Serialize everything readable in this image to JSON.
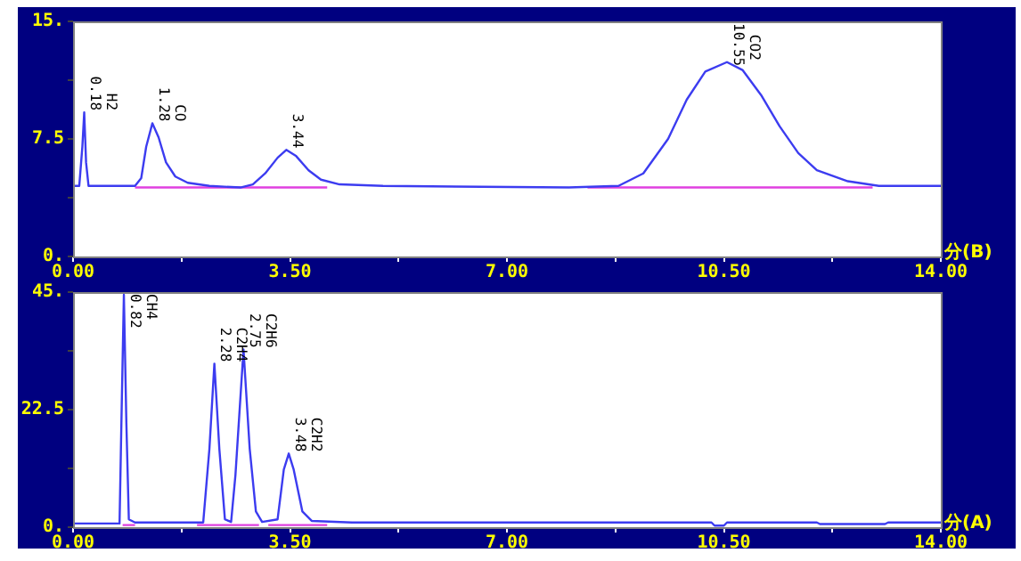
{
  "chart_data": [
    {
      "type": "line",
      "xlabel": "分(B)",
      "xlim": [
        0,
        14
      ],
      "ylim": [
        0,
        15
      ],
      "xticks": [
        {
          "value": 0,
          "label": "0.00"
        },
        {
          "value": 1.75,
          "label": null
        },
        {
          "value": 3.5,
          "label": "3.50"
        },
        {
          "value": 5.25,
          "label": null
        },
        {
          "value": 7,
          "label": "7.00"
        },
        {
          "value": 8.75,
          "label": null
        },
        {
          "value": 10.5,
          "label": "10.50"
        },
        {
          "value": 12.25,
          "label": null
        },
        {
          "value": 14,
          "label": "14.00"
        }
      ],
      "yticks": [
        {
          "value": 0,
          "label": "0."
        },
        {
          "value": 3.75,
          "label": null
        },
        {
          "value": 7.5,
          "label": "7.5"
        },
        {
          "value": 11.25,
          "label": null
        },
        {
          "value": 15,
          "label": "15."
        }
      ],
      "grid": false,
      "legend": false,
      "marker": "none",
      "line_style": "solid",
      "series": [
        {
          "color": "#3c3cf0",
          "x": [
            0,
            0.1,
            0.15,
            0.18,
            0.21,
            0.25,
            1.0,
            1.1,
            1.18,
            1.28,
            1.38,
            1.5,
            1.65,
            1.85,
            2.2,
            2.7,
            2.9,
            3.1,
            3.3,
            3.44,
            3.6,
            3.8,
            4.0,
            4.3,
            5,
            8,
            8.8,
            9.2,
            9.6,
            9.9,
            10.2,
            10.55,
            10.8,
            11.1,
            11.4,
            11.7,
            12.0,
            12.5,
            13,
            14
          ],
          "values": [
            4.5,
            4.5,
            7,
            9.2,
            6,
            4.5,
            4.5,
            5.0,
            7.0,
            8.5,
            7.6,
            6.0,
            5.1,
            4.7,
            4.5,
            4.4,
            4.6,
            5.3,
            6.3,
            6.8,
            6.4,
            5.5,
            4.9,
            4.6,
            4.5,
            4.4,
            4.5,
            5.3,
            7.5,
            10.0,
            11.8,
            12.4,
            11.9,
            10.3,
            8.3,
            6.6,
            5.5,
            4.8,
            4.5,
            4.5
          ]
        },
        {
          "color": "#e040e0",
          "x": [
            1.0,
            2.7,
            2.75,
            4.1,
            4.2,
            8.3,
            12.9
          ],
          "values": [
            4.4,
            4.4,
            4.4,
            4.4,
            null,
            4.4,
            4.4
          ]
        }
      ],
      "annotations": [
        {
          "text": "0.18",
          "x": 0.18,
          "y": 9.2
        },
        {
          "text": "H2",
          "x": 0.18,
          "y": 9.2
        },
        {
          "text": "1.28",
          "x": 1.28,
          "y": 8.5
        },
        {
          "text": "CO",
          "x": 1.28,
          "y": 8.5
        },
        {
          "text": "3.44",
          "x": 3.44,
          "y": 6.8
        },
        {
          "text": "10.55",
          "x": 10.55,
          "y": 12.4
        },
        {
          "text": "CO2",
          "x": 10.55,
          "y": 12.4
        }
      ]
    },
    {
      "type": "line",
      "xlabel": "分(A)",
      "xlim": [
        0,
        14
      ],
      "ylim": [
        0,
        45
      ],
      "xticks": [
        {
          "value": 0,
          "label": "0.00"
        },
        {
          "value": 1.75,
          "label": null
        },
        {
          "value": 3.5,
          "label": "3.50"
        },
        {
          "value": 5.25,
          "label": null
        },
        {
          "value": 7,
          "label": "7.00"
        },
        {
          "value": 8.75,
          "label": null
        },
        {
          "value": 10.5,
          "label": "10.50"
        },
        {
          "value": 12.25,
          "label": null
        },
        {
          "value": 14,
          "label": "14.00"
        }
      ],
      "yticks": [
        {
          "value": 0,
          "label": "0."
        },
        {
          "value": 11.25,
          "label": null
        },
        {
          "value": 22.5,
          "label": "22.5"
        },
        {
          "value": 33.75,
          "label": null
        },
        {
          "value": 45,
          "label": "45."
        }
      ],
      "grid": false,
      "legend": false,
      "marker": "none",
      "line_style": "solid",
      "series": [
        {
          "color": "#3c3cf0",
          "x": [
            0,
            0.75,
            0.78,
            0.82,
            0.86,
            0.9,
            1.0,
            2.1,
            2.2,
            2.28,
            2.36,
            2.45,
            2.55,
            2.62,
            2.75,
            2.85,
            2.95,
            3.05,
            3.3,
            3.4,
            3.48,
            3.56,
            3.7,
            3.85,
            4.5,
            10.3,
            10.35,
            10.5,
            10.55,
            12,
            12.05,
            13.1,
            13.15,
            14
          ],
          "values": [
            0.7,
            0.7,
            20,
            44.5,
            20,
            1.5,
            0.9,
            0.9,
            15,
            31.3,
            15,
            1.5,
            1.0,
            10,
            34,
            15,
            3,
            1.0,
            1.5,
            11,
            14.1,
            11,
            3,
            1.2,
            0.9,
            0.9,
            0.3,
            0.3,
            0.9,
            0.9,
            0.6,
            0.6,
            0.9,
            0.9
          ]
        },
        {
          "color": "#e040e0",
          "x": [
            0.8,
            1.0,
            1.1,
            2.0,
            3.0,
            3.1,
            3.15,
            4.1
          ],
          "values": [
            0.4,
            0.4,
            null,
            0.4,
            0.4,
            null,
            0.4,
            0.4
          ]
        }
      ],
      "annotations": [
        {
          "text": "0.82",
          "x": 0.82,
          "y": 44.5
        },
        {
          "text": "CH4",
          "x": 0.82,
          "y": 44.5
        },
        {
          "text": "2.28",
          "x": 2.28,
          "y": 31.3
        },
        {
          "text": "C2H4",
          "x": 2.28,
          "y": 31.3
        },
        {
          "text": "2.75",
          "x": 2.75,
          "y": 34
        },
        {
          "text": "C2H6",
          "x": 2.75,
          "y": 34
        },
        {
          "text": "3.48",
          "x": 3.48,
          "y": 14.1
        },
        {
          "text": "C2H2",
          "x": 3.48,
          "y": 14.1
        }
      ]
    }
  ]
}
